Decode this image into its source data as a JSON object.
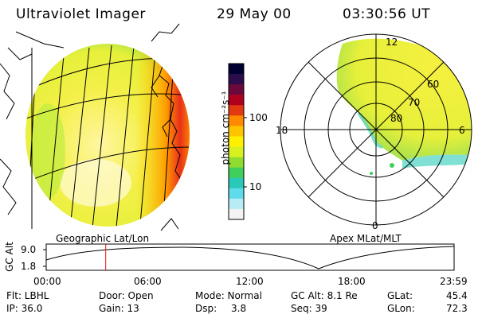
{
  "header": {
    "instrument": "Ultraviolet Imager",
    "date": "29 May 00",
    "time": "03:30:56 UT"
  },
  "colorbar": {
    "unit_label": "photon cm⁻²s⁻¹",
    "ticks": [
      "100",
      "10"
    ],
    "colors": [
      "#000033",
      "#2a0d4a",
      "#6a0a3a",
      "#b00020",
      "#e23a10",
      "#ff8a00",
      "#ffc400",
      "#fff000",
      "#d8f020",
      "#8fdc30",
      "#3fcf5a",
      "#2ac8b8",
      "#5fdcea",
      "#b8ecf4",
      "#f2f2f2"
    ]
  },
  "left_panel": {
    "caption": "Geographic Lat/Lon"
  },
  "right_panel": {
    "caption": "Apex MLat/MLT",
    "mlt_labels": {
      "top": "12",
      "left": "18",
      "right": "6",
      "bottom": "0"
    },
    "lat_labels": [
      "60",
      "70",
      "80"
    ]
  },
  "altitude_plot": {
    "ylabel": "GC Alt",
    "yticks": [
      "9.0",
      "1.8"
    ],
    "xticks": [
      "00:00",
      "06:00",
      "12:00",
      "18:00",
      "23:59"
    ],
    "current_marker_hour": 3.5
  },
  "footer": {
    "filter": "Flt: LBHL",
    "ip": "IP: 36.0",
    "door": "Door: Open",
    "gain": "Gain: 13",
    "mode": "Mode: Normal",
    "dsp_label": "Dsp:",
    "dsp_value": "3.8",
    "gc_alt": "GC Alt: 8.1 Re",
    "seq": "Seq: 39",
    "glat": "GLat:",
    "glat_value": "45.4",
    "glon": "GLon:",
    "glon_value": "72.3"
  }
}
